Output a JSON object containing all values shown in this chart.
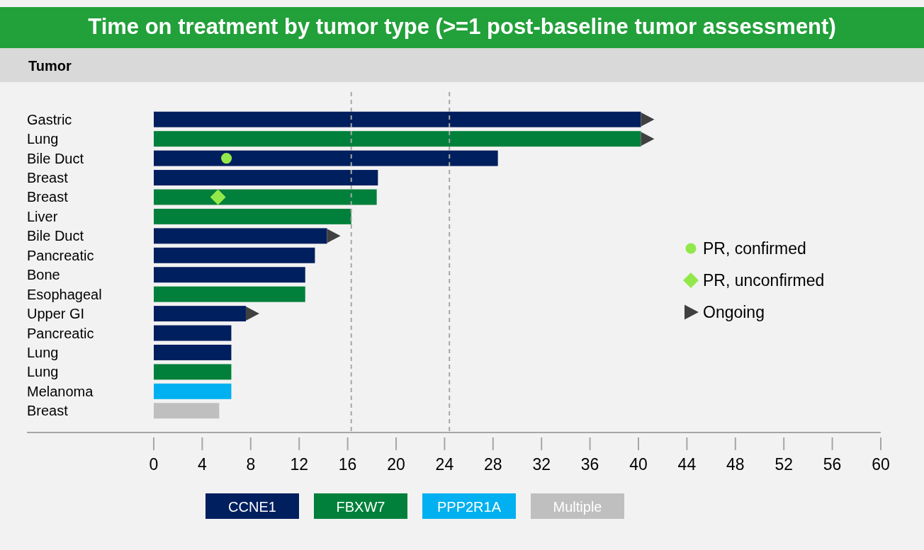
{
  "chart_data": {
    "type": "bar",
    "orientation": "horizontal",
    "title": "Time on treatment by tumor type (>=1 post-baseline tumor assessment)",
    "ylabel": "Tumor",
    "categories": [
      "Gastric",
      "Lung",
      "Bile Duct",
      "Breast",
      "Breast",
      "Liver",
      "Bile Duct",
      "Pancreatic",
      "Bone",
      "Esophageal",
      "Upper GI",
      "Pancreatic",
      "Lung",
      "Lung",
      "Melanoma",
      "Breast"
    ],
    "series": [
      {
        "name": "CCNE1",
        "color": "#001f5f",
        "values": [
          40.2,
          null,
          28.4,
          18.5,
          null,
          null,
          14.3,
          13.3,
          12.5,
          null,
          7.6,
          6.4,
          6.4,
          null,
          null,
          null
        ]
      },
      {
        "name": "FBXW7",
        "color": "#00803a",
        "values": [
          null,
          40.2,
          null,
          null,
          18.4,
          16.3,
          null,
          null,
          null,
          12.5,
          null,
          null,
          null,
          6.4,
          null,
          null
        ]
      },
      {
        "name": "PPP2R1A",
        "color": "#00b0f0",
        "values": [
          null,
          null,
          null,
          null,
          null,
          null,
          null,
          null,
          null,
          null,
          null,
          null,
          null,
          null,
          6.4,
          null
        ]
      },
      {
        "name": "Multiple",
        "color": "#bfbfbf",
        "values": [
          null,
          null,
          null,
          null,
          null,
          null,
          null,
          null,
          null,
          null,
          null,
          null,
          null,
          null,
          null,
          5.4
        ]
      },
      {
        "name": "PR, confirmed",
        "type": "scatter",
        "marker": "circle",
        "color": "#92e84a",
        "values": [
          null,
          null,
          6.0,
          null,
          null,
          null,
          null,
          null,
          null,
          null,
          null,
          null,
          null,
          null,
          null,
          null
        ]
      },
      {
        "name": "PR, unconfirmed",
        "type": "scatter",
        "marker": "diamond",
        "color": "#92e84a",
        "values": [
          null,
          null,
          null,
          null,
          5.3,
          null,
          null,
          null,
          null,
          null,
          null,
          null,
          null,
          null,
          null,
          null
        ]
      },
      {
        "name": "Ongoing",
        "type": "scatter",
        "marker": "triangle",
        "color": "#404040",
        "values": [
          40.2,
          40.2,
          null,
          null,
          null,
          null,
          14.3,
          null,
          null,
          null,
          7.6,
          null,
          null,
          null,
          null,
          null
        ]
      }
    ],
    "xlim": [
      0,
      60
    ],
    "xticks": [
      0,
      4,
      8,
      12,
      16,
      20,
      24,
      28,
      32,
      36,
      40,
      44,
      48,
      52,
      56,
      60
    ],
    "ref_lines": [
      {
        "axis": "x",
        "value": 16.3,
        "color": "#a6a6a6",
        "line_style": "dashed"
      },
      {
        "axis": "x",
        "value": 24.4,
        "color": "#a6a6a6",
        "line_style": "dashed"
      }
    ],
    "legend": "bottom"
  }
}
